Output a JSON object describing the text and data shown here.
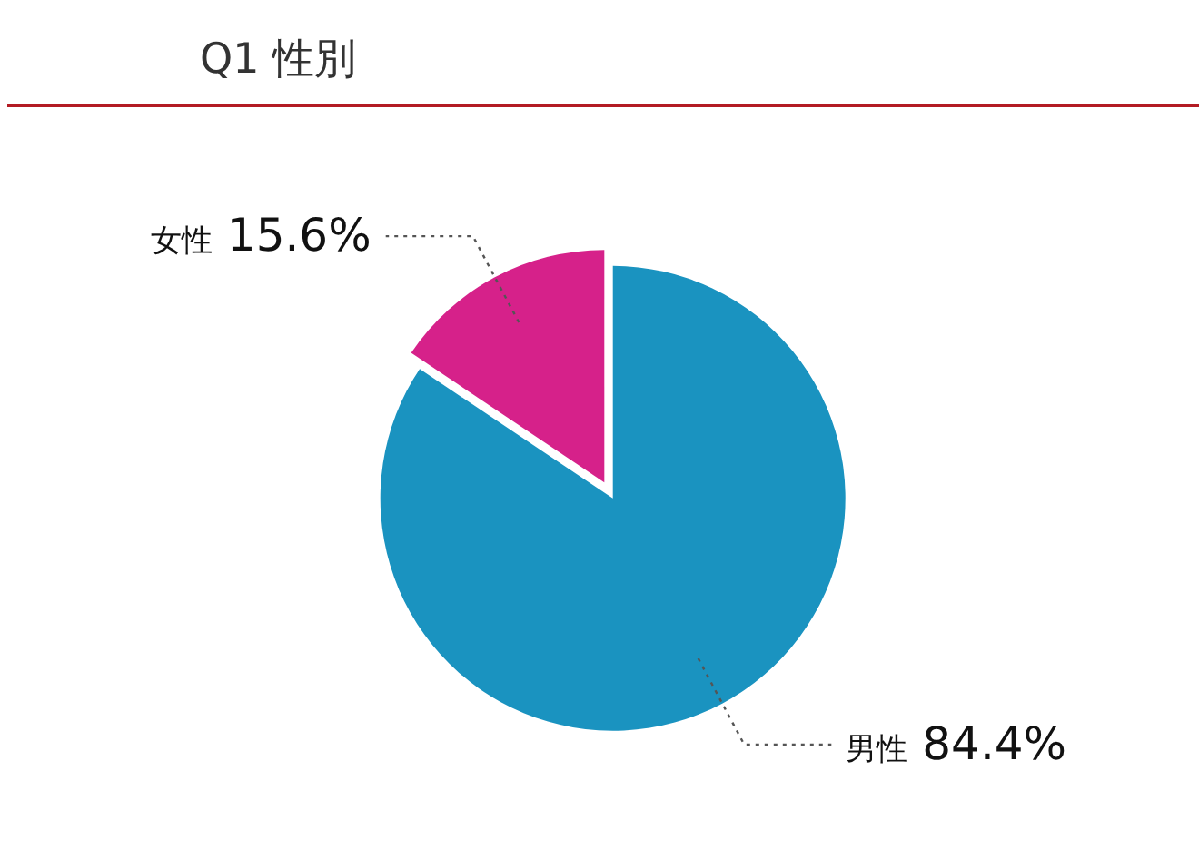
{
  "chart_data": {
    "type": "pie",
    "title": "Q1 性別",
    "categories": [
      "男性",
      "女性"
    ],
    "values": [
      84.4,
      15.6
    ],
    "colors": [
      "#1a93c0",
      "#d6218a"
    ],
    "value_labels": [
      "84.4%",
      "15.6%"
    ]
  }
}
